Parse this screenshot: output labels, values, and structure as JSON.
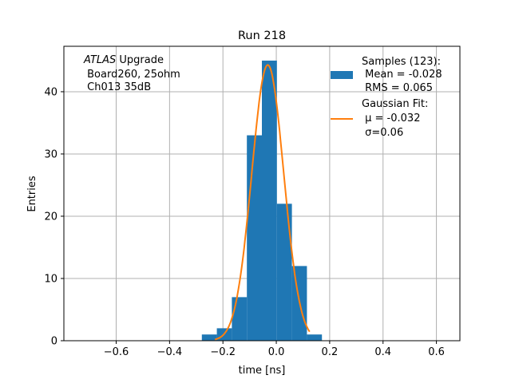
{
  "chart_data": {
    "type": "bar",
    "title": "Run 218",
    "xlabel": "time [ns]",
    "ylabel": "Entries",
    "xlim": [
      -0.796,
      0.688
    ],
    "ylim": [
      0,
      47.3
    ],
    "grid": true,
    "xticks": [
      -0.6,
      -0.4,
      -0.2,
      0.0,
      0.2,
      0.4,
      0.6
    ],
    "xtick_labels": [
      "−0.6",
      "−0.4",
      "−0.2",
      "0.0",
      "0.2",
      "0.4",
      "0.6"
    ],
    "yticks": [
      0,
      10,
      20,
      30,
      40
    ],
    "ytick_labels": [
      "0",
      "10",
      "20",
      "30",
      "40"
    ],
    "bin_edges": [
      -0.279,
      -0.2228,
      -0.1665,
      -0.1103,
      -0.054,
      0.0023,
      0.0585,
      0.1148,
      0.171
    ],
    "values": [
      1,
      2,
      7,
      33,
      45,
      22,
      12,
      1
    ],
    "bar_color": "#1f77b4",
    "fit": {
      "name": "Gaussian Fit",
      "mu": -0.032,
      "sigma": 0.06,
      "amplitude": 44.3,
      "x_range": [
        -0.23,
        0.125
      ],
      "color": "#ff7f0e"
    },
    "annotation": {
      "italic": "ATLAS",
      "rest": " Upgrade",
      "line2": " Board260, 25ohm",
      "line3": " Ch013 35dB"
    },
    "legend": {
      "placement": "top-right",
      "samples": [
        "Samples (123):",
        " Mean = -0.028",
        " RMS = 0.065"
      ],
      "fit": [
        "Gaussian Fit:",
        " μ = -0.032",
        " σ=0.06"
      ]
    }
  }
}
